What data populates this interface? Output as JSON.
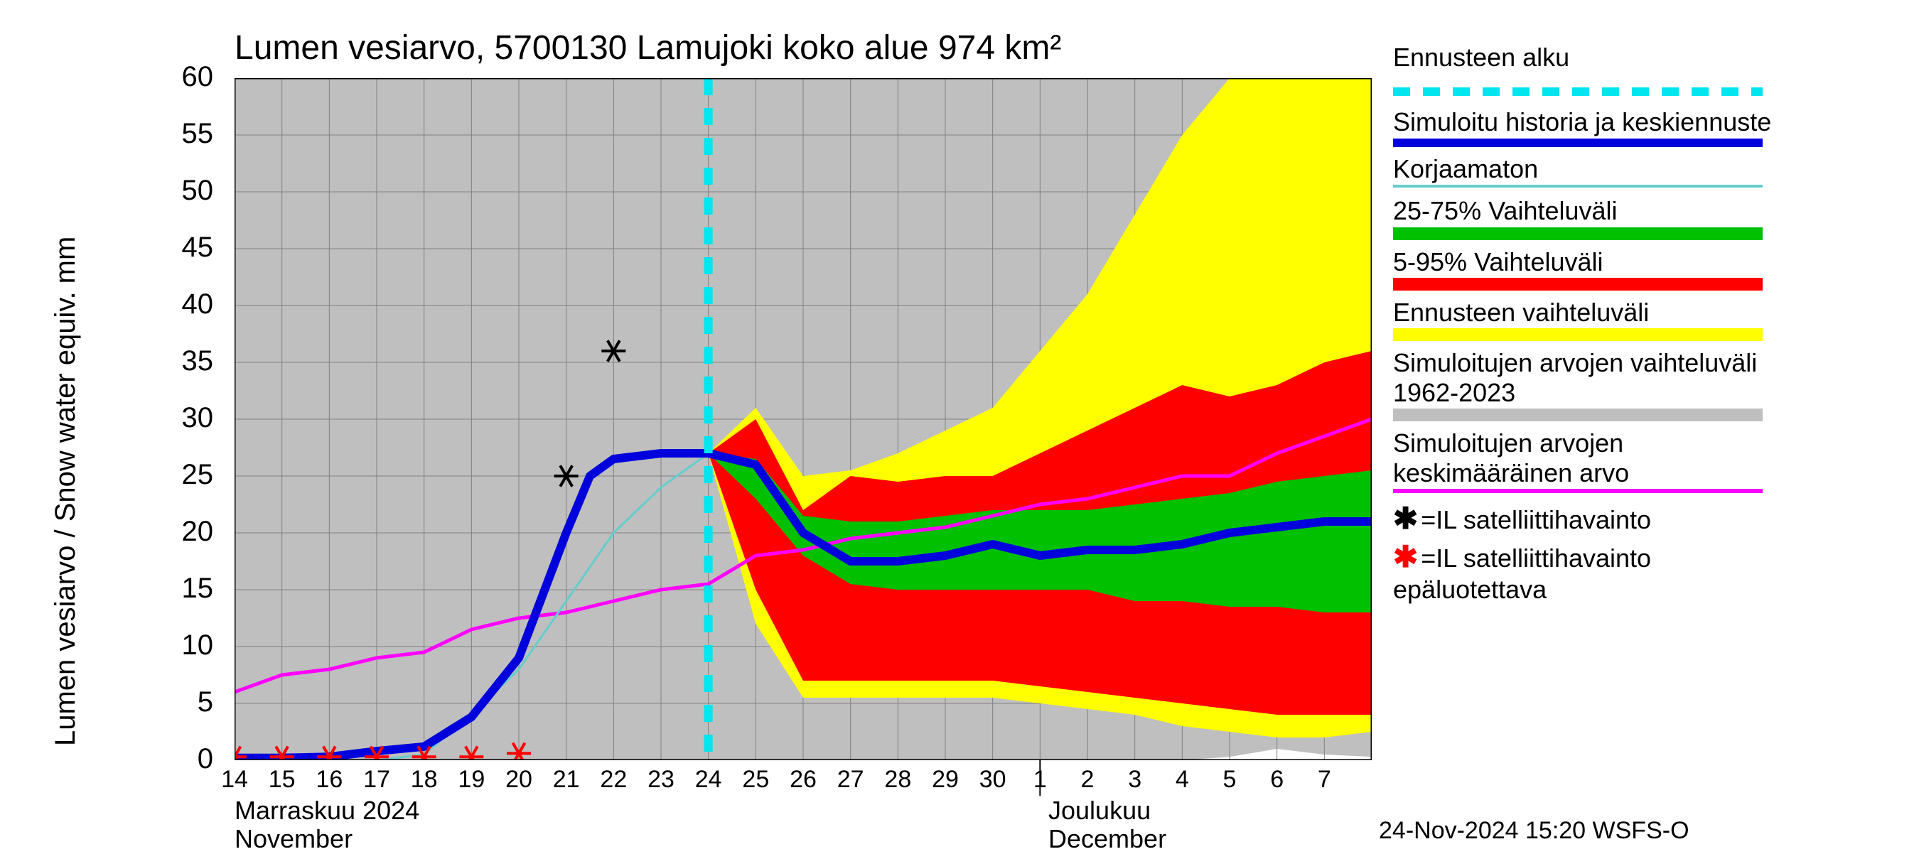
{
  "title": "Lumen vesiarvo, 5700130 Lamujoki koko alue 974 km²",
  "y_axis_label": "Lumen vesiarvo / Snow water equiv.    mm",
  "footer": "24-Nov-2024 15:20 WSFS-O",
  "month_labels": {
    "nov_fi": "Marraskuu 2024",
    "nov_en": "November",
    "dec_fi": "Joulukuu",
    "dec_en": "December"
  },
  "chart": {
    "type": "line_with_bands",
    "xlim": [
      0,
      24
    ],
    "ylim": [
      0,
      60
    ],
    "x_days": [
      "14",
      "15",
      "16",
      "17",
      "18",
      "19",
      "20",
      "21",
      "22",
      "23",
      "24",
      "25",
      "26",
      "27",
      "28",
      "29",
      "30",
      "1",
      "2",
      "3",
      "4",
      "5",
      "6",
      "7"
    ],
    "ytick_step": 5,
    "forecast_start_x": 10,
    "bg_color": "#bfbfbf",
    "grid_color": "#808080",
    "colors": {
      "forecast_start": "#00e5ee",
      "simulated": "#0000dd",
      "uncorrected": "#66cccc",
      "band_25_75": "#00c000",
      "band_5_95": "#ff0000",
      "band_full": "#ffff00",
      "sim_range": "#bfbfbf",
      "sim_mean": "#ff00ff",
      "sat_obs": "#000000",
      "sat_obs_unrel": "#ff0000"
    },
    "simulated_line": [
      [
        0,
        0.2
      ],
      [
        1,
        0.2
      ],
      [
        2,
        0.3
      ],
      [
        3,
        0.8
      ],
      [
        4,
        1.2
      ],
      [
        5,
        3.8
      ],
      [
        6,
        9
      ],
      [
        7,
        20
      ],
      [
        7.5,
        25
      ],
      [
        8,
        26.5
      ],
      [
        9,
        27
      ],
      [
        10,
        27
      ],
      [
        11,
        26
      ],
      [
        12,
        20
      ],
      [
        13,
        17.5
      ],
      [
        14,
        17.5
      ],
      [
        15,
        18
      ],
      [
        16,
        19
      ],
      [
        17,
        18
      ],
      [
        18,
        18.5
      ],
      [
        19,
        18.5
      ],
      [
        20,
        19
      ],
      [
        21,
        20
      ],
      [
        22,
        20.5
      ],
      [
        23,
        21
      ],
      [
        24,
        21
      ]
    ],
    "uncorrected_line": [
      [
        3,
        0
      ],
      [
        4,
        0.5
      ],
      [
        5,
        4
      ],
      [
        6,
        8
      ],
      [
        7,
        14
      ],
      [
        8,
        20
      ],
      [
        9,
        24
      ],
      [
        10,
        27
      ]
    ],
    "sim_mean_line": [
      [
        0,
        6
      ],
      [
        1,
        7.5
      ],
      [
        2,
        8
      ],
      [
        3,
        9
      ],
      [
        4,
        9.5
      ],
      [
        5,
        11.5
      ],
      [
        6,
        12.5
      ],
      [
        7,
        13
      ],
      [
        8,
        14
      ],
      [
        9,
        15
      ],
      [
        10,
        15.5
      ],
      [
        11,
        18
      ],
      [
        12,
        18.5
      ],
      [
        13,
        19.5
      ],
      [
        14,
        20
      ],
      [
        15,
        20.5
      ],
      [
        16,
        21.5
      ],
      [
        17,
        22.5
      ],
      [
        18,
        23
      ],
      [
        19,
        24
      ],
      [
        20,
        25
      ],
      [
        21,
        25
      ],
      [
        22,
        27
      ],
      [
        23,
        28.5
      ],
      [
        24,
        30
      ]
    ],
    "band_full_upper": [
      [
        10,
        27
      ],
      [
        11,
        31
      ],
      [
        12,
        25
      ],
      [
        13,
        25.5
      ],
      [
        14,
        27
      ],
      [
        15,
        29
      ],
      [
        16,
        31
      ],
      [
        17,
        36
      ],
      [
        18,
        41
      ],
      [
        19,
        48
      ],
      [
        20,
        55
      ],
      [
        21,
        60
      ],
      [
        22,
        60
      ],
      [
        23,
        60
      ],
      [
        24,
        60
      ]
    ],
    "band_full_lower": [
      [
        10,
        27
      ],
      [
        11,
        12
      ],
      [
        12,
        5.5
      ],
      [
        13,
        5.5
      ],
      [
        14,
        5.5
      ],
      [
        15,
        5.5
      ],
      [
        16,
        5.5
      ],
      [
        17,
        5
      ],
      [
        18,
        4.5
      ],
      [
        19,
        4
      ],
      [
        20,
        3
      ],
      [
        21,
        2.5
      ],
      [
        22,
        2
      ],
      [
        23,
        2
      ],
      [
        24,
        2.5
      ]
    ],
    "band_5_95_upper": [
      [
        10,
        27
      ],
      [
        11,
        30
      ],
      [
        12,
        22
      ],
      [
        13,
        25
      ],
      [
        14,
        24.5
      ],
      [
        15,
        25
      ],
      [
        16,
        25
      ],
      [
        17,
        27
      ],
      [
        18,
        29
      ],
      [
        19,
        31
      ],
      [
        20,
        33
      ],
      [
        21,
        32
      ],
      [
        22,
        33
      ],
      [
        23,
        35
      ],
      [
        24,
        36
      ]
    ],
    "band_5_95_lower": [
      [
        10,
        27
      ],
      [
        11,
        15
      ],
      [
        12,
        7
      ],
      [
        13,
        7
      ],
      [
        14,
        7
      ],
      [
        15,
        7
      ],
      [
        16,
        7
      ],
      [
        17,
        6.5
      ],
      [
        18,
        6
      ],
      [
        19,
        5.5
      ],
      [
        20,
        5
      ],
      [
        21,
        4.5
      ],
      [
        22,
        4
      ],
      [
        23,
        4
      ],
      [
        24,
        4
      ]
    ],
    "band_25_75_upper": [
      [
        10,
        27
      ],
      [
        11,
        26.5
      ],
      [
        12,
        21.5
      ],
      [
        13,
        21
      ],
      [
        14,
        21
      ],
      [
        15,
        21.5
      ],
      [
        16,
        22
      ],
      [
        17,
        22
      ],
      [
        18,
        22
      ],
      [
        19,
        22.5
      ],
      [
        20,
        23
      ],
      [
        21,
        23.5
      ],
      [
        22,
        24.5
      ],
      [
        23,
        25
      ],
      [
        24,
        25.5
      ]
    ],
    "band_25_75_lower": [
      [
        10,
        27
      ],
      [
        11,
        23
      ],
      [
        12,
        18
      ],
      [
        13,
        15.5
      ],
      [
        14,
        15
      ],
      [
        15,
        15
      ],
      [
        16,
        15
      ],
      [
        17,
        15
      ],
      [
        18,
        15
      ],
      [
        19,
        14
      ],
      [
        20,
        14
      ],
      [
        21,
        13.5
      ],
      [
        22,
        13.5
      ],
      [
        23,
        13
      ],
      [
        24,
        13
      ]
    ],
    "sim_range_upper": 60,
    "sim_range_lower_line": [
      [
        0,
        0
      ],
      [
        20,
        0
      ],
      [
        21,
        0.3
      ],
      [
        22,
        1
      ],
      [
        23,
        0.5
      ],
      [
        24,
        0.3
      ]
    ],
    "sat_obs": [
      [
        7,
        25
      ],
      [
        8,
        36
      ]
    ],
    "sat_obs_unreliable": [
      [
        0,
        0.3
      ],
      [
        1,
        0.3
      ],
      [
        2,
        0.3
      ],
      [
        3,
        0.3
      ],
      [
        4,
        0.3
      ],
      [
        5,
        0.3
      ],
      [
        6,
        0.6
      ]
    ]
  },
  "legend": {
    "forecast_start": "Ennusteen alku",
    "simulated": "Simuloitu historia ja keskiennuste",
    "uncorrected": "Korjaamaton",
    "band_25_75": "25-75% Vaihteluväli",
    "band_5_95": "5-95% Vaihteluväli",
    "band_full": "Ennusteen vaihteluväli",
    "sim_range": "Simuloitujen arvojen vaihteluväli 1962-2023",
    "sim_mean": "Simuloitujen arvojen keskimääräinen arvo",
    "sat_obs": "=IL satelliittihavainto",
    "sat_obs_unrel": "=IL satelliittihavainto epäluotettava"
  }
}
